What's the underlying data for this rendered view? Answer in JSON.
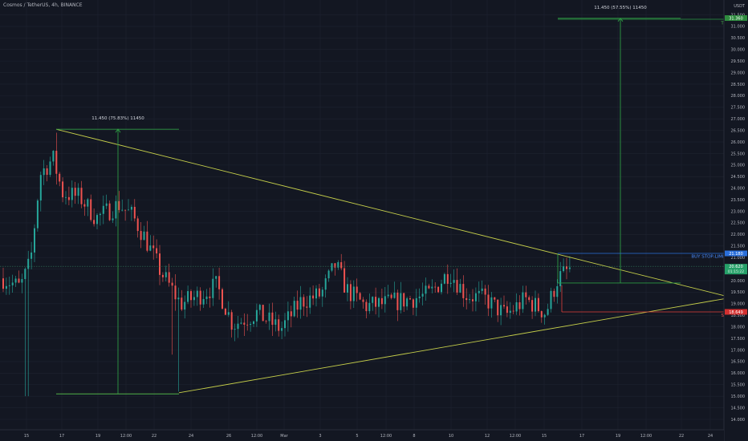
{
  "header": {
    "title": "Cosmos / TetherUS, 4h, BINANCE"
  },
  "axis": {
    "unit": "USDT"
  },
  "colors": {
    "background": "#131722",
    "grid": "#1e2330",
    "up": "#26a69a",
    "down": "#ef5350",
    "wedge": "#c6cf4a",
    "measure": "#2e9a44",
    "buy": "#2a6fdb",
    "sl": "#e0403b",
    "axis_text": "#b2b5be"
  },
  "chart_data": {
    "type": "candlestick",
    "title": "Cosmos / TetherUS, 4h, BINANCE",
    "ylabel": "USDT",
    "ylim": [
      13.7,
      31.7
    ],
    "y_ticks": [
      "14.000",
      "14.500",
      "15.000",
      "15.500",
      "16.000",
      "16.500",
      "17.000",
      "17.500",
      "18.000",
      "18.500",
      "19.000",
      "19.500",
      "20.000",
      "20.500",
      "21.000",
      "21.500",
      "22.000",
      "22.500",
      "23.000",
      "23.500",
      "24.000",
      "24.500",
      "25.000",
      "25.500",
      "26.000",
      "26.500",
      "27.000",
      "27.500",
      "28.000",
      "28.500",
      "29.000",
      "29.500",
      "30.000",
      "30.500",
      "31.000",
      "31.500"
    ],
    "x_ticks": [
      "15",
      "17",
      "19",
      "12:00",
      "22",
      "24",
      "26",
      "12:00",
      "Mar",
      "3",
      "5",
      "12:00",
      "8",
      "10",
      "12",
      "12:00",
      "15",
      "17",
      "19",
      "12:00",
      "22",
      "24"
    ],
    "grid": true,
    "price_levels": [
      {
        "label": "BUY STOP-LIMIT",
        "value_text": "21.180",
        "price": 21.18
      },
      {
        "label": "",
        "value_text": "20.620",
        "sub_text": "01:15:22",
        "price": 20.62
      },
      {
        "label": "TP",
        "value_text": "31.360",
        "price": 31.36
      },
      {
        "label": "SL",
        "value_text": "18.649",
        "price": 18.649
      }
    ],
    "annotations": [
      {
        "text": "11.450 (75.83%) 11450",
        "from_price": 15.1,
        "to_price": 26.55
      },
      {
        "text": "11.450 (57.55%) 11450",
        "from_price": 19.9,
        "to_price": 31.35
      }
    ],
    "wedge": {
      "upper": {
        "from_price": 26.55,
        "to_price": 19.3
      },
      "lower": {
        "from_price": 15.15,
        "to_price": 19.25
      }
    },
    "candles_shown": "approx. 180 four-hour candles, Feb 14 - Mar 16"
  }
}
